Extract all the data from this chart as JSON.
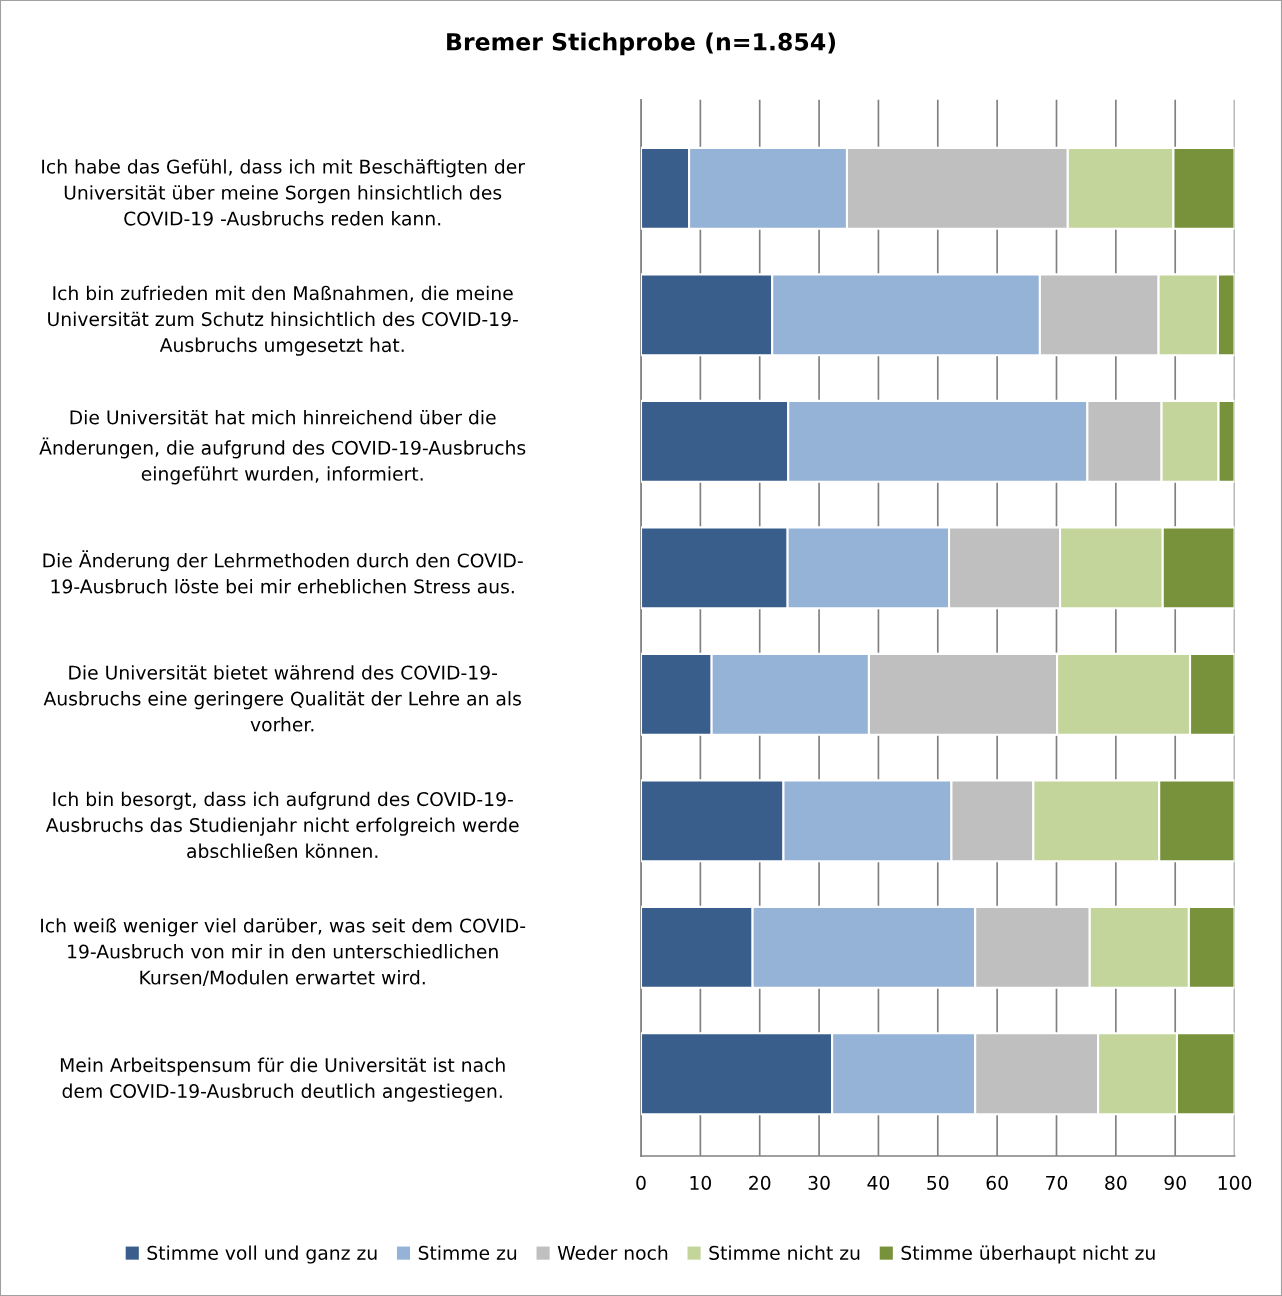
{
  "chart_data": {
    "type": "bar",
    "orientation": "horizontal",
    "stacked": true,
    "title": "Bremer Stichprobe (n=1.854)",
    "categories": [
      "Ich habe das Gefühl, dass ich mit Beschäftigten der\nUniversität über meine Sorgen hinsichtlich des\nCOVID-19 -Ausbruchs reden kann.",
      "Ich bin zufrieden mit den Maßnahmen, die meine\nUniversität zum Schutz hinsichtlich des COVID-19-\nAusbruchs umgesetzt hat.",
      "Die Universität hat mich hinreichend über die\nÄnderungen, die aufgrund des COVID-19-Ausbruchs\neingeführt wurden, informiert.",
      "Die Änderung der Lehrmethoden durch den COVID-\n19-Ausbruch löste bei mir erheblichen Stress aus.",
      "Die Universität bietet während des COVID-19-\nAusbruchs eine geringere Qualität der Lehre an als\nvorher.",
      "Ich bin besorgt, dass ich aufgrund des COVID-19-\nAusbruchs das Studienjahr nicht erfolgreich werde\nabschließen können.",
      "Ich weiß weniger viel darüber, was seit dem COVID-\n19-Ausbruch von mir in den unterschiedlichen\nKursen/Modulen erwartet wird.",
      "Mein Arbeitspensum für die Universität ist nach\ndem COVID-19-Ausbruch deutlich angestiegen."
    ],
    "series": [
      {
        "name": "Stimme voll und ganz zu",
        "color": "#3a5e8c",
        "values": [
          8.1,
          22.1,
          24.8,
          24.7,
          11.9,
          24.0,
          18.8,
          32.2
        ]
      },
      {
        "name": "Stimme zu",
        "color": "#95b2d7",
        "values": [
          26.6,
          45.1,
          50.4,
          27.2,
          26.5,
          28.3,
          37.5,
          24.1
        ]
      },
      {
        "name": "Weder noch",
        "color": "#bfbfbf",
        "values": [
          37.2,
          20.0,
          12.5,
          18.7,
          31.7,
          13.8,
          19.3,
          20.7
        ]
      },
      {
        "name": "Stimme nicht zu",
        "color": "#c4d59b",
        "values": [
          17.8,
          10.0,
          9.6,
          17.3,
          22.4,
          21.2,
          16.7,
          13.3
        ]
      },
      {
        "name": "Stimme überhaupt nicht zu",
        "color": "#77923a",
        "values": [
          10.3,
          2.8,
          2.7,
          12.1,
          7.5,
          12.7,
          7.7,
          9.7
        ]
      }
    ],
    "xlim": [
      0,
      100
    ],
    "xticks": [
      0,
      10,
      20,
      30,
      40,
      50,
      60,
      70,
      80,
      90,
      100
    ],
    "grid": "x",
    "legend": "bottom"
  }
}
